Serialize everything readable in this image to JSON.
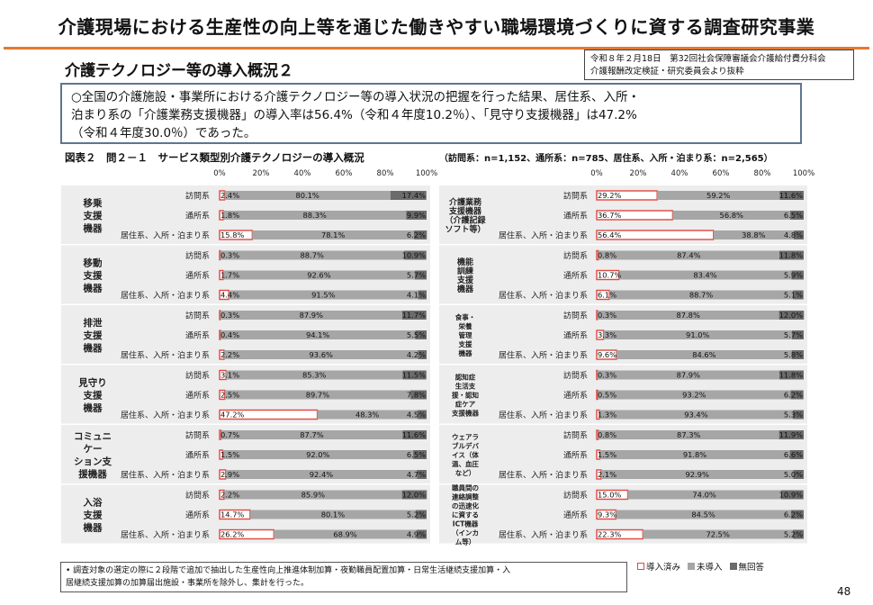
{
  "header": {
    "title": "介護現場における生産性の向上等を通じた働きやすい職場環境づくりに資する調査研究事業",
    "section_title": "介護テクノロジー等の導入概況２",
    "source_line1": "令和８年２月18日　第32回社会保障審議会介護給付費分科会",
    "source_line2": "介護報酬改定検証・研究委員会より抜粋"
  },
  "summary": {
    "line1": "○全国の介護施設・事業所における介護テクノロジー等の導入状況の把握を行った結果、居住系、入所・",
    "line2": "泊まり系の「介護業務支援機器」の導入率は56.4%（令和４年度10.2％）、「見守り支援機器」は47.2%",
    "line3": "（令和４年度30.0％）であった。"
  },
  "figure": {
    "label": "図表２　問２－１　サービス類型別介護テクノロジーの導入概況",
    "sample_note": "（訪問系：n=1,152、通所系：n=785、居住系、入所・泊まり系：n=2,565）"
  },
  "footnote": {
    "line1": "• 調査対象の選定の際に２段階で追加で抽出した生産性向上推進体制加算・夜勤職員配置加算・日常生活継続支援加算・入",
    "line2": "居継続支援加算の加算届出施設・事業所を除外し、集計を行った。"
  },
  "page_number": "48",
  "colors": {
    "installed": "#e0473e",
    "not_installed": "#a6a6a6",
    "no_answer": "#6b6b6b",
    "row_bg": "#ededed"
  },
  "chart_data": {
    "type": "bar",
    "stacked": true,
    "orientation": "horizontal",
    "xlim": [
      0,
      100
    ],
    "x_ticks": [
      "0%",
      "20%",
      "40%",
      "60%",
      "80%",
      "100%"
    ],
    "legend": [
      "導入済み",
      "未導入",
      "無回答"
    ],
    "legend_position": "bottom-right",
    "row_labels": [
      "訪問系",
      "通所系",
      "居住系、入所・泊まり系"
    ],
    "panels": [
      {
        "groups": [
          {
            "label": "移乗\n支援\n機器",
            "rows": [
              {
                "values": [
                  2.4,
                  80.1,
                  17.4
                ],
                "labels": [
                  "2.4%",
                  "80.1%",
                  "17.4%"
                ]
              },
              {
                "values": [
                  1.8,
                  88.3,
                  9.9
                ],
                "labels": [
                  "1.8%",
                  "88.3%",
                  "9.9%"
                ]
              },
              {
                "values": [
                  15.8,
                  78.1,
                  6.2
                ],
                "labels": [
                  "15.8%",
                  "78.1%",
                  "6.2%"
                ]
              }
            ]
          },
          {
            "label": "移動\n支援\n機器",
            "rows": [
              {
                "values": [
                  0.3,
                  88.7,
                  10.9
                ],
                "labels": [
                  "0.3%",
                  "88.7%",
                  "10.9%"
                ]
              },
              {
                "values": [
                  1.7,
                  92.6,
                  5.7
                ],
                "labels": [
                  "1.7%",
                  "92.6%",
                  "5.7%"
                ]
              },
              {
                "values": [
                  4.4,
                  91.5,
                  4.1
                ],
                "labels": [
                  "4.4%",
                  "91.5%",
                  "4.1%"
                ]
              }
            ]
          },
          {
            "label": "排泄\n支援\n機器",
            "rows": [
              {
                "values": [
                  0.3,
                  87.9,
                  11.7
                ],
                "labels": [
                  "0.3%",
                  "87.9%",
                  "11.7%"
                ]
              },
              {
                "values": [
                  0.4,
                  94.1,
                  5.5
                ],
                "labels": [
                  "0.4%",
                  "94.1%",
                  "5.5%"
                ]
              },
              {
                "values": [
                  2.2,
                  93.6,
                  4.2
                ],
                "labels": [
                  "2.2%",
                  "93.6%",
                  "4.2%"
                ]
              }
            ]
          },
          {
            "label": "見守り\n支援\n機器",
            "rows": [
              {
                "values": [
                  3.1,
                  85.3,
                  11.5
                ],
                "labels": [
                  "3.1%",
                  "85.3%",
                  "11.5%"
                ]
              },
              {
                "values": [
                  2.5,
                  89.7,
                  7.8
                ],
                "labels": [
                  "2.5%",
                  "89.7%",
                  "7.8%"
                ]
              },
              {
                "values": [
                  47.2,
                  48.3,
                  4.5
                ],
                "labels": [
                  "47.2%",
                  "48.3%",
                  "4.5%"
                ]
              }
            ]
          },
          {
            "label": "コミュニ\nケー\nション支\n援機器",
            "rows": [
              {
                "values": [
                  0.7,
                  87.7,
                  11.6
                ],
                "labels": [
                  "0.7%",
                  "87.7%",
                  "11.6%"
                ]
              },
              {
                "values": [
                  1.5,
                  92.0,
                  6.5
                ],
                "labels": [
                  "1.5%",
                  "92.0%",
                  "6.5%"
                ]
              },
              {
                "values": [
                  2.9,
                  92.4,
                  4.7
                ],
                "labels": [
                  "2.9%",
                  "92.4%",
                  "4.7%"
                ]
              }
            ]
          },
          {
            "label": "入浴\n支援\n機器",
            "rows": [
              {
                "values": [
                  2.2,
                  85.9,
                  12.0
                ],
                "labels": [
                  "2.2%",
                  "85.9%",
                  "12.0%"
                ]
              },
              {
                "values": [
                  14.7,
                  80.1,
                  5.2
                ],
                "labels": [
                  "14.7%",
                  "80.1%",
                  "5.2%"
                ]
              },
              {
                "values": [
                  26.2,
                  68.9,
                  4.9
                ],
                "labels": [
                  "26.2%",
                  "68.9%",
                  "4.9%"
                ]
              }
            ]
          }
        ]
      },
      {
        "groups": [
          {
            "label": "介護業務\n支援機器\n（介護記録\nソフト等）",
            "rows": [
              {
                "values": [
                  29.2,
                  59.2,
                  11.6
                ],
                "labels": [
                  "29.2%",
                  "59.2%",
                  "11.6%"
                ]
              },
              {
                "values": [
                  36.7,
                  56.8,
                  6.5
                ],
                "labels": [
                  "36.7%",
                  "56.8%",
                  "6.5%"
                ]
              },
              {
                "values": [
                  56.4,
                  38.8,
                  4.8
                ],
                "labels": [
                  "56.4%",
                  "38.8%",
                  "4.8%"
                ]
              }
            ]
          },
          {
            "label": "機能\n訓練\n支援\n機器",
            "rows": [
              {
                "values": [
                  0.8,
                  87.4,
                  11.8
                ],
                "labels": [
                  "0.8%",
                  "87.4%",
                  "11.8%"
                ]
              },
              {
                "values": [
                  10.7,
                  83.4,
                  5.9
                ],
                "labels": [
                  "10.7%",
                  "83.4%",
                  "5.9%"
                ]
              },
              {
                "values": [
                  6.1,
                  88.7,
                  5.1
                ],
                "labels": [
                  "6.1%",
                  "88.7%",
                  "5.1%"
                ]
              }
            ]
          },
          {
            "label": "食事・\n栄養\n管理\n支援\n機器",
            "rows": [
              {
                "values": [
                  0.3,
                  87.8,
                  12.0
                ],
                "labels": [
                  "0.3%",
                  "87.8%",
                  "12.0%"
                ]
              },
              {
                "values": [
                  3.3,
                  91.0,
                  5.7
                ],
                "labels": [
                  "3.3%",
                  "91.0%",
                  "5.7%"
                ]
              },
              {
                "values": [
                  9.6,
                  84.6,
                  5.8
                ],
                "labels": [
                  "9.6%",
                  "84.6%",
                  "5.8%"
                ]
              }
            ]
          },
          {
            "label": "認知症\n生活支\n援・認知\n症ケア\n支援機器",
            "rows": [
              {
                "values": [
                  0.3,
                  87.9,
                  11.8
                ],
                "labels": [
                  "0.3%",
                  "87.9%",
                  "11.8%"
                ]
              },
              {
                "values": [
                  0.5,
                  93.2,
                  6.2
                ],
                "labels": [
                  "0.5%",
                  "93.2%",
                  "6.2%"
                ]
              },
              {
                "values": [
                  1.3,
                  93.4,
                  5.3
                ],
                "labels": [
                  "1.3%",
                  "93.4%",
                  "5.3%"
                ]
              }
            ]
          },
          {
            "label": "ウェアラ\nブルデバ\nイス（体\n温、血圧\nなど）",
            "rows": [
              {
                "values": [
                  0.8,
                  87.3,
                  11.9
                ],
                "labels": [
                  "0.8%",
                  "87.3%",
                  "11.9%"
                ]
              },
              {
                "values": [
                  1.5,
                  91.8,
                  6.6
                ],
                "labels": [
                  "1.5%",
                  "91.8%",
                  "6.6%"
                ]
              },
              {
                "values": [
                  2.1,
                  92.9,
                  5.0
                ],
                "labels": [
                  "2.1%",
                  "92.9%",
                  "5.0%"
                ]
              }
            ]
          },
          {
            "label": "職員間の\n連絡調整\nの迅速化\nに資する\nICT機器\n（インカ\nム等）",
            "rows": [
              {
                "values": [
                  15.0,
                  74.0,
                  10.9
                ],
                "labels": [
                  "15.0%",
                  "74.0%",
                  "10.9%"
                ]
              },
              {
                "values": [
                  9.3,
                  84.5,
                  6.2
                ],
                "labels": [
                  "9.3%",
                  "84.5%",
                  "6.2%"
                ]
              },
              {
                "values": [
                  22.3,
                  72.5,
                  5.2
                ],
                "labels": [
                  "22.3%",
                  "72.5%",
                  "5.2%"
                ]
              }
            ]
          }
        ]
      }
    ]
  }
}
